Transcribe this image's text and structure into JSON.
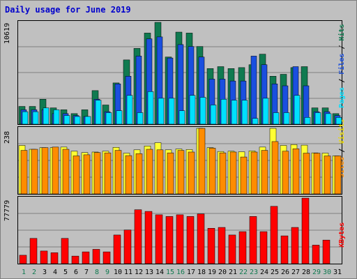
{
  "title": "Daily usage for June 2019",
  "colors": {
    "pages": "#00e0ff",
    "files": "#1a4fdf",
    "hits": "#107a50",
    "visits": "#ffff33",
    "sites": "#ff8c00",
    "kbytes": "#ff0000",
    "weekday_label": "#000000",
    "weekend_label": "#107a50",
    "grid": "#808080"
  },
  "chart_data": [
    {
      "type": "bar",
      "name": "usage-top",
      "ymax_label": "10619",
      "right_label_parts": [
        {
          "text": "Pages",
          "color": "#00e0ff"
        },
        {
          "text": " / ",
          "color": "#000000"
        },
        {
          "text": "Files",
          "color": "#1a4fdf"
        },
        {
          "text": " / ",
          "color": "#000000"
        },
        {
          "text": "Hits",
          "color": "#107a50"
        }
      ],
      "ylim": [
        0,
        10619
      ],
      "categories": [
        "1",
        "2",
        "3",
        "4",
        "5",
        "6",
        "7",
        "8",
        "9",
        "10",
        "11",
        "12",
        "13",
        "14",
        "15",
        "16",
        "17",
        "18",
        "19",
        "20",
        "21",
        "22",
        "23",
        "24",
        "25",
        "26",
        "27",
        "28",
        "29",
        "30",
        "31"
      ],
      "weekend_days": [
        "1",
        "2",
        "8",
        "9",
        "15",
        "16",
        "22",
        "23",
        "29",
        "30"
      ],
      "series": [
        {
          "name": "Hits",
          "values": [
            1850,
            1850,
            2600,
            1700,
            1500,
            1100,
            1500,
            3500,
            2000,
            4300,
            6700,
            7900,
            9500,
            10619,
            7000,
            9600,
            9500,
            8100,
            5800,
            6000,
            5800,
            5900,
            6200,
            7300,
            5000,
            5200,
            5900,
            6000,
            1700,
            1700,
            1100
          ]
        },
        {
          "name": "Files",
          "values": [
            1500,
            1500,
            1500,
            1100,
            1100,
            900,
            800,
            2600,
            1300,
            4200,
            5000,
            7100,
            8900,
            9100,
            6900,
            8300,
            8100,
            7000,
            4700,
            4700,
            4500,
            4500,
            7100,
            6200,
            4200,
            4000,
            6000,
            4000,
            1300,
            1300,
            900
          ]
        },
        {
          "name": "Pages",
          "values": [
            1300,
            1300,
            1700,
            1500,
            900,
            800,
            800,
            2500,
            1200,
            1400,
            3000,
            1200,
            3400,
            2700,
            2700,
            1400,
            3000,
            2800,
            2000,
            2600,
            2500,
            2500,
            600,
            2700,
            1200,
            1200,
            3000,
            700,
            1200,
            1100,
            700
          ]
        }
      ]
    },
    {
      "type": "bar",
      "name": "usage-middle",
      "ymax_label": "238",
      "right_label_parts": [
        {
          "text": "Sites",
          "color": "#ff8c00"
        },
        {
          "text": " / ",
          "color": "#000000"
        },
        {
          "text": "Visits",
          "color": "#ffff33"
        }
      ],
      "ylim": [
        0,
        238
      ],
      "categories": [
        "1",
        "2",
        "3",
        "4",
        "5",
        "6",
        "7",
        "8",
        "9",
        "10",
        "11",
        "12",
        "13",
        "14",
        "15",
        "16",
        "17",
        "18",
        "19",
        "20",
        "21",
        "22",
        "23",
        "24",
        "25",
        "26",
        "27",
        "28",
        "29",
        "30",
        "31"
      ],
      "series": [
        {
          "name": "Visits",
          "values": [
            176,
            162,
            168,
            168,
            170,
            155,
            150,
            152,
            155,
            169,
            148,
            160,
            174,
            186,
            160,
            163,
            161,
            238,
            168,
            154,
            155,
            153,
            156,
            170,
            238,
            176,
            179,
            177,
            149,
            148,
            138
          ]
        },
        {
          "name": "Sites",
          "values": [
            158,
            162,
            168,
            170,
            162,
            138,
            142,
            150,
            149,
            158,
            139,
            146,
            162,
            160,
            149,
            158,
            152,
            238,
            166,
            149,
            152,
            134,
            152,
            158,
            190,
            155,
            164,
            148,
            148,
            138,
            138
          ]
        }
      ]
    },
    {
      "type": "bar",
      "name": "kbytes",
      "ymax_label": "77779",
      "right_label_parts": [
        {
          "text": "KBytes",
          "color": "#ff0000"
        }
      ],
      "ylim": [
        0,
        77779
      ],
      "categories": [
        "1",
        "2",
        "3",
        "4",
        "5",
        "6",
        "7",
        "8",
        "9",
        "10",
        "11",
        "12",
        "13",
        "14",
        "15",
        "16",
        "17",
        "18",
        "19",
        "20",
        "21",
        "22",
        "23",
        "24",
        "25",
        "26",
        "27",
        "28",
        "29",
        "30",
        "31"
      ],
      "series": [
        {
          "name": "KBytes",
          "values": [
            10000,
            30000,
            15000,
            13000,
            30000,
            9000,
            14000,
            17000,
            14000,
            34000,
            40000,
            64000,
            62000,
            58000,
            56000,
            58000,
            56000,
            59000,
            42000,
            43000,
            34000,
            38000,
            56000,
            38000,
            68000,
            33000,
            43000,
            77779,
            22000,
            28000,
            0
          ]
        }
      ]
    }
  ]
}
